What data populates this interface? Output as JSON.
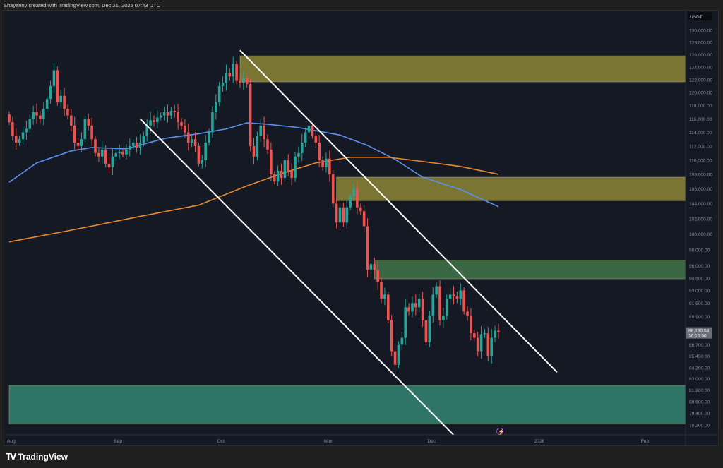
{
  "header": {
    "credit": "Shayannv created with TradingView.com, Dec 21, 2025 07:43 UTC"
  },
  "footer": {
    "brand": "TradingView",
    "logo_mark": "TV"
  },
  "chart_data": {
    "type": "candlestick",
    "currency": "USDT",
    "scale": "log",
    "grid": false,
    "ylim": [
      78200,
      130000
    ],
    "y_ticks": [
      "130,000.00",
      "128,000.00",
      "126,000.00",
      "124,000.00",
      "122,000.00",
      "120,000.00",
      "118,000.00",
      "116,000.00",
      "114,000.00",
      "112,000.00",
      "110,000.00",
      "108,000.00",
      "106,000.00",
      "104,000.00",
      "102,000.00",
      "100,000.00",
      "98,000.00",
      "96,000.00",
      "94,500.00",
      "93,000.00",
      "91,500.00",
      "89,900.00",
      "86,700.00",
      "85,450.00",
      "84,200.00",
      "83,000.00",
      "81,800.00",
      "80,600.00",
      "79,400.00",
      "78,200.00"
    ],
    "x_ticks": [
      {
        "label": "Aug",
        "date": "2025-08-01"
      },
      {
        "label": "Sep",
        "date": "2025-09-01"
      },
      {
        "label": "Oct",
        "date": "2025-10-01"
      },
      {
        "label": "Nov",
        "date": "2025-11-01"
      },
      {
        "label": "Dec",
        "date": "2025-12-01"
      },
      {
        "label": "2026",
        "date": "2026-01-01"
      },
      {
        "label": "Feb",
        "date": "2026-02-01"
      }
    ],
    "last_price": {
      "price": "88,130.54",
      "countdown": "16:16:50"
    },
    "colors": {
      "up": "#26a69a",
      "down": "#ef5350",
      "ma_fast": "#5b8ff0",
      "ma_slow": "#e8892f",
      "trendline": "#ffffff"
    },
    "daily_closes": {
      "2025-08": [
        115500,
        113500,
        112500,
        113000,
        114000,
        114500,
        116000,
        117000,
        116500,
        116000,
        117500,
        119000,
        121000,
        123500,
        118500,
        119500,
        117500,
        116500,
        115000,
        112500,
        112000,
        113000,
        116000,
        115000,
        113000,
        111000,
        110500,
        111500,
        109500,
        109000,
        110500
      ],
      "2025-09": [
        111000,
        111200,
        110800,
        111500,
        112000,
        112500,
        111800,
        112500,
        113500,
        115000,
        115800,
        115500,
        116200,
        116500,
        117000,
        116500,
        117200,
        117000,
        115500,
        115000,
        114000,
        112500,
        113000,
        112000,
        109500,
        110000,
        112500,
        114000,
        117000,
        118500
      ],
      "2025-10": [
        121000,
        121500,
        123000,
        122500,
        124500,
        121800,
        121500,
        122200,
        121300,
        112000,
        110500,
        113500,
        115000,
        113000,
        111500,
        108000,
        107000,
        108500,
        107500,
        110000,
        108500,
        107500,
        110500,
        111000,
        112500,
        114000,
        115000,
        113500,
        112500,
        110000,
        109000
      ],
      "2025-11": [
        110200,
        108000,
        104000,
        101500,
        103500,
        101500,
        103500,
        105000,
        106000,
        103500,
        103000,
        101000,
        95500,
        96200,
        95500,
        94000,
        92000,
        92500,
        89500,
        86000,
        84500,
        86700,
        87500,
        91000,
        90500,
        91500,
        91000,
        92000,
        89500,
        87000
      ],
      "2025-12": [
        90000,
        92500,
        93500,
        89500,
        90000,
        92000,
        92500,
        92300,
        92000,
        93000,
        90500,
        90000,
        88000,
        87500,
        86000,
        87900,
        88000,
        85500,
        87500,
        88300,
        88130
      ]
    },
    "moving_averages": [
      {
        "color": "#5b8ff0",
        "points": [
          [
            "2025-08-01",
            106900
          ],
          [
            "2025-08-09",
            109600
          ],
          [
            "2025-08-19",
            111300
          ],
          [
            "2025-08-25",
            111800
          ],
          [
            "2025-09-04",
            111600
          ],
          [
            "2025-09-15",
            113100
          ],
          [
            "2025-09-25",
            113800
          ],
          [
            "2025-10-03",
            114500
          ],
          [
            "2025-10-09",
            115400
          ],
          [
            "2025-10-15",
            115200
          ],
          [
            "2025-10-24",
            114700
          ],
          [
            "2025-11-05",
            113600
          ],
          [
            "2025-11-13",
            112100
          ],
          [
            "2025-11-21",
            110100
          ],
          [
            "2025-11-29",
            107600
          ],
          [
            "2025-12-10",
            105900
          ],
          [
            "2025-12-21",
            103600
          ]
        ]
      },
      {
        "color": "#e8892f",
        "points": [
          [
            "2025-08-01",
            99000
          ],
          [
            "2025-08-19",
            100500
          ],
          [
            "2025-09-08",
            102300
          ],
          [
            "2025-09-25",
            103800
          ],
          [
            "2025-10-09",
            106400
          ],
          [
            "2025-10-19",
            108100
          ],
          [
            "2025-10-29",
            109600
          ],
          [
            "2025-11-08",
            110400
          ],
          [
            "2025-11-19",
            110400
          ],
          [
            "2025-11-29",
            109800
          ],
          [
            "2025-12-10",
            109100
          ],
          [
            "2025-12-21",
            108000
          ]
        ]
      }
    ],
    "zones": [
      {
        "color": "#807a34",
        "from": "2025-10-07",
        "low": 121650,
        "high": 125800
      },
      {
        "color": "#807a34",
        "from": "2025-11-04",
        "low": 104400,
        "high": 107600
      },
      {
        "color": "#3b6b47",
        "from": "2025-11-15",
        "low": 94400,
        "high": 96700
      },
      {
        "color": "#2f7a6c",
        "from": "2025-08-01",
        "low": 78300,
        "high": 82300
      }
    ],
    "trendlines": [
      {
        "start": [
          "2025-10-07",
          126700
        ],
        "end": [
          "2026-01-07",
          83700
        ]
      },
      {
        "start": [
          "2025-09-08",
          116000
        ],
        "end": [
          "2025-12-08",
          77200
        ]
      }
    ]
  }
}
